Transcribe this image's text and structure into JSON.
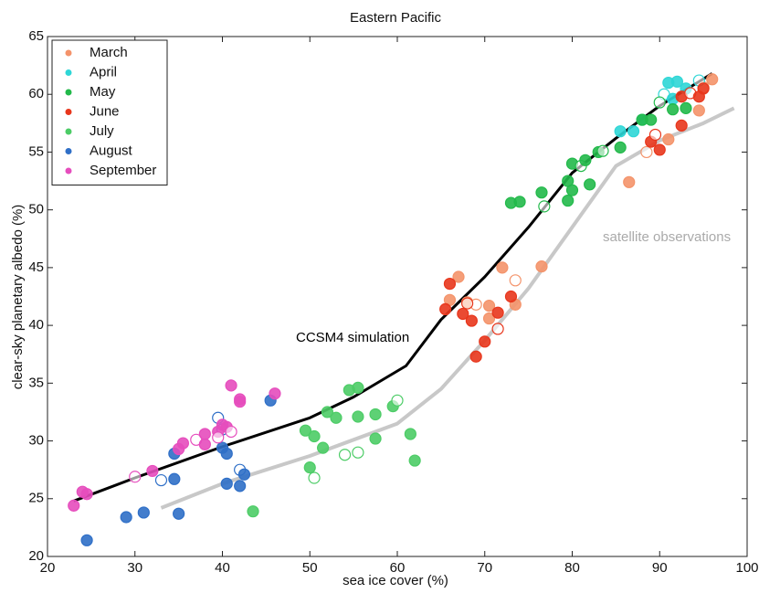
{
  "chart_data": {
    "type": "scatter",
    "title": "Eastern Pacific",
    "x_label": "sea ice cover (%)",
    "y_label": "clear-sky planetary albedo (%)",
    "xlim": [
      20,
      100
    ],
    "ylim": [
      20,
      65
    ],
    "xticks": [
      20,
      30,
      40,
      50,
      60,
      70,
      80,
      90,
      100
    ],
    "yticks": [
      20,
      25,
      30,
      35,
      40,
      45,
      50,
      55,
      60,
      65
    ],
    "grid": false,
    "legend": "upper left",
    "series": [
      {
        "name": "March",
        "color": "#f4936a",
        "x": [
          66,
          67,
          68,
          69,
          70.5,
          70.5,
          72,
          73.5,
          73.5,
          76.5,
          86.5,
          88.5,
          91,
          94.5,
          96,
          95
        ],
        "values": [
          42.2,
          44.2,
          42,
          41.8,
          41.7,
          40.6,
          45,
          43.9,
          41.8,
          45.1,
          52.4,
          55,
          56.1,
          58.6,
          61.3,
          60.6
        ]
      },
      {
        "name": "April",
        "color": "#2ed6d6",
        "x": [
          85.5,
          87,
          88,
          90.5,
          91,
          92,
          93,
          94.5,
          91.5
        ],
        "values": [
          56.8,
          56.8,
          57.8,
          60,
          61,
          61.1,
          60.5,
          61.2,
          59.6
        ]
      },
      {
        "name": "May",
        "color": "#22b94a",
        "x": [
          73,
          74,
          76.5,
          76.8,
          79.5,
          79.5,
          80,
          81,
          81.5,
          82,
          83,
          83.5,
          85.5,
          88,
          89,
          90,
          91.5,
          93,
          80
        ],
        "values": [
          50.6,
          50.7,
          51.5,
          50.3,
          52.5,
          50.8,
          54,
          53.8,
          54.3,
          52.2,
          55,
          55.1,
          55.4,
          57.8,
          57.8,
          59.3,
          58.7,
          58.8,
          51.7
        ]
      },
      {
        "name": "June",
        "color": "#e8361c",
        "x": [
          65.5,
          66,
          67.5,
          68,
          68.5,
          69,
          70,
          71.5,
          71.5,
          73,
          89,
          89.5,
          90,
          92.5,
          92.5,
          93.5,
          94.5,
          95
        ],
        "values": [
          41.4,
          43.6,
          41,
          41.9,
          40.4,
          37.3,
          38.6,
          39.7,
          41.1,
          42.5,
          55.9,
          56.5,
          55.2,
          57.3,
          59.8,
          60.1,
          59.8,
          60.5
        ]
      },
      {
        "name": "July",
        "color": "#4ccc66",
        "x": [
          49.5,
          50,
          50.5,
          50.5,
          51.5,
          52,
          53,
          54,
          54.5,
          55.5,
          55.5,
          55.5,
          57.5,
          57.5,
          59.5,
          60,
          61.5,
          62,
          43.5
        ],
        "values": [
          30.9,
          27.7,
          30.4,
          26.8,
          29.4,
          32.5,
          32,
          28.8,
          34.4,
          32.1,
          34.6,
          29,
          32.3,
          30.2,
          33,
          33.5,
          30.6,
          28.3,
          23.9
        ]
      },
      {
        "name": "August",
        "color": "#2f6fc7",
        "x": [
          24.5,
          29,
          31,
          33,
          34.5,
          34.5,
          35,
          39.5,
          40,
          40.5,
          40.5,
          42,
          42,
          42.5,
          45.5,
          40
        ],
        "values": [
          21.4,
          23.4,
          23.8,
          26.6,
          28.9,
          26.7,
          23.7,
          32,
          29.4,
          28.9,
          26.3,
          27.5,
          26.1,
          27.1,
          33.5,
          31
        ]
      },
      {
        "name": "September",
        "color": "#e64dbd",
        "x": [
          23,
          24,
          24.5,
          30,
          32,
          35,
          35.5,
          37,
          38,
          38,
          39.5,
          39.5,
          40,
          40.5,
          41,
          41,
          42,
          42,
          46
        ],
        "values": [
          24.4,
          25.6,
          25.4,
          26.9,
          27.4,
          29.3,
          29.8,
          30.1,
          30.6,
          29.7,
          30.8,
          30.3,
          31.4,
          31.2,
          34.8,
          30.8,
          33.4,
          33.6,
          34.1
        ]
      }
    ],
    "lines": [
      {
        "color": "#000000",
        "x": [
          23,
          30,
          40,
          50,
          55,
          61,
          65,
          70,
          75,
          80,
          85,
          90,
          96
        ],
        "values": [
          24.8,
          26.8,
          29.5,
          32,
          33.8,
          36.5,
          40.5,
          44.2,
          48.5,
          53.2,
          56.2,
          59,
          61.8
        ]
      },
      {
        "color": "#c8c8c8",
        "x": [
          33,
          40,
          50,
          60,
          65,
          70,
          75,
          80,
          85,
          90,
          95,
          98.5
        ],
        "values": [
          24.2,
          26.3,
          28.7,
          31.5,
          34.5,
          38.7,
          43.2,
          48.5,
          53.8,
          56,
          57.5,
          58.8
        ]
      }
    ],
    "annotations": [
      {
        "text": "CCSM4 simulation",
        "color": "#000000"
      },
      {
        "text": "satellite observations",
        "color": "#aaaaaa"
      }
    ]
  }
}
